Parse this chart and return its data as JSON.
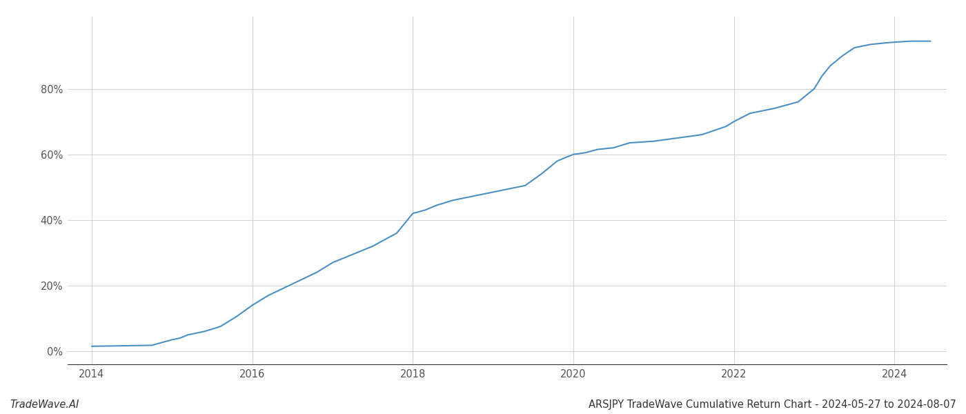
{
  "title": "ARSJPY TradeWave Cumulative Return Chart - 2024-05-27 to 2024-08-07",
  "watermark": "TradeWave.AI",
  "line_color": "#4a90c4",
  "background_color": "#ffffff",
  "grid_color": "#cccccc",
  "x_values": [
    2014.0,
    2014.25,
    2014.5,
    2014.75,
    2015.0,
    2015.1,
    2015.2,
    2015.4,
    2015.6,
    2015.8,
    2016.0,
    2016.2,
    2016.5,
    2016.8,
    2017.0,
    2017.2,
    2017.5,
    2017.8,
    2018.0,
    2018.15,
    2018.3,
    2018.5,
    2018.7,
    2018.9,
    2019.0,
    2019.2,
    2019.4,
    2019.6,
    2019.8,
    2020.0,
    2020.15,
    2020.3,
    2020.5,
    2020.7,
    2021.0,
    2021.3,
    2021.6,
    2021.9,
    2022.0,
    2022.2,
    2022.5,
    2022.8,
    2023.0,
    2023.1,
    2023.2,
    2023.35,
    2023.5,
    2023.7,
    2023.9,
    2024.0,
    2024.2,
    2024.45
  ],
  "y_values": [
    1.5,
    1.6,
    1.7,
    1.8,
    3.5,
    4.0,
    5.0,
    6.0,
    7.5,
    10.5,
    14.0,
    17.0,
    20.5,
    24.0,
    27.0,
    29.0,
    32.0,
    36.0,
    42.0,
    43.0,
    44.5,
    46.0,
    47.0,
    48.0,
    48.5,
    49.5,
    50.5,
    54.0,
    58.0,
    60.0,
    60.5,
    61.5,
    62.0,
    63.5,
    64.0,
    65.0,
    66.0,
    68.5,
    70.0,
    72.5,
    74.0,
    76.0,
    80.0,
    84.0,
    87.0,
    90.0,
    92.5,
    93.5,
    94.0,
    94.2,
    94.5,
    94.5
  ],
  "xlim": [
    2013.7,
    2024.65
  ],
  "ylim": [
    -4,
    102
  ],
  "yticks": [
    0,
    20,
    40,
    60,
    80
  ],
  "xticks": [
    2014,
    2016,
    2018,
    2020,
    2022,
    2024
  ],
  "line_width": 1.5,
  "title_fontsize": 10.5,
  "watermark_fontsize": 10.5,
  "tick_fontsize": 10.5,
  "tick_color": "#555555",
  "spine_color": "#333333"
}
